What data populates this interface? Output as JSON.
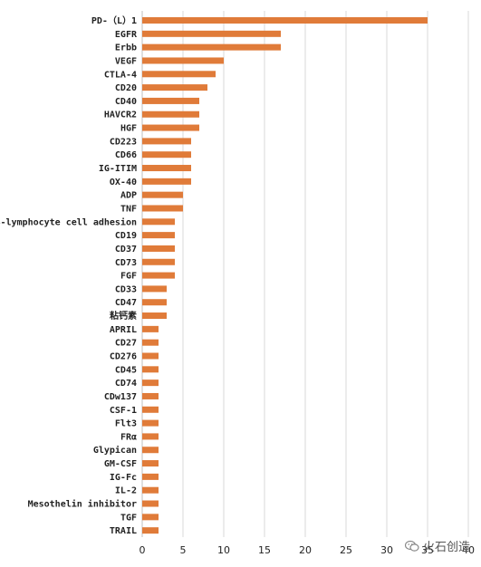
{
  "chart_data": {
    "type": "bar",
    "orientation": "horizontal",
    "categories": [
      "PD-（L）1",
      "EGFR",
      "Erbb",
      "VEGF",
      "CTLA-4",
      "CD20",
      "CD40",
      "HAVCR2",
      "HGF",
      "CD223",
      "CD66",
      "IG-ITIM",
      "OX-40",
      "ADP",
      "TNF",
      "B-lymphocyte cell adhesion",
      "CD19",
      "CD37",
      "CD73",
      "FGF",
      "CD33",
      "CD47",
      "粘钙素",
      "APRIL",
      "CD27",
      "CD276",
      "CD45",
      "CD74",
      "CDw137",
      "CSF-1",
      "Flt3",
      "FRα",
      "Glypican",
      "GM-CSF",
      "IG-Fc",
      "IL-2",
      "Mesothelin inhibitor",
      "TGF",
      "TRAIL"
    ],
    "values": [
      35,
      17,
      17,
      10,
      9,
      8,
      7,
      7,
      7,
      6,
      6,
      6,
      6,
      5,
      5,
      4,
      4,
      4,
      4,
      4,
      3,
      3,
      3,
      2,
      2,
      2,
      2,
      2,
      2,
      2,
      2,
      2,
      2,
      2,
      2,
      2,
      2,
      2,
      2
    ],
    "xlim": [
      0,
      40
    ],
    "xticks": [
      0,
      5,
      10,
      15,
      20,
      25,
      30,
      35,
      40
    ],
    "grid": true,
    "bar_color": "#e07b39",
    "legend": "none",
    "title": "",
    "xlabel": "",
    "ylabel": ""
  },
  "watermark": {
    "icon": "wechat-icon",
    "text": "火石创造"
  }
}
